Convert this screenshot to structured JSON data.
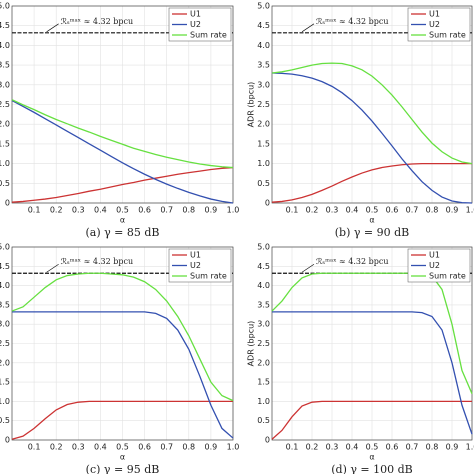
{
  "chart_data": [
    {
      "type": "line",
      "caption": "(a) γ = 85 dB",
      "xlabel": "α",
      "annotation": "ℛₛᵐᵃˣ ≈ 4.32 bpcu",
      "reference_value": 4.32,
      "grid": true,
      "legend": "upper right",
      "xlim": [
        0,
        1
      ],
      "xticks": [
        0.1,
        0.2,
        0.3,
        0.4,
        0.5,
        0.6,
        0.7,
        0.8,
        0.9,
        {
          "value": 1,
          "label": "1.0"
        }
      ],
      "ylim": [
        0,
        5
      ],
      "yticks": [
        0,
        0.5,
        {
          "value": 1,
          "label": "1.0"
        },
        1.5,
        {
          "value": 2,
          "label": "2.0"
        },
        2.5,
        {
          "value": 3,
          "label": "3.0"
        },
        3.5,
        {
          "value": 4,
          "label": "4.0"
        },
        4.5,
        {
          "value": 5,
          "label": "5.0"
        }
      ],
      "x": [
        0,
        0.05,
        0.1,
        0.15,
        0.2,
        0.25,
        0.3,
        0.35,
        0.4,
        0.45,
        0.5,
        0.55,
        0.6,
        0.65,
        0.7,
        0.75,
        0.8,
        0.85,
        0.9,
        0.95,
        1
      ],
      "series": [
        {
          "name": "U1",
          "color": "#cc3333",
          "values": [
            0.02,
            0.04,
            0.07,
            0.1,
            0.14,
            0.19,
            0.24,
            0.3,
            0.35,
            0.41,
            0.47,
            0.52,
            0.58,
            0.63,
            0.68,
            0.73,
            0.77,
            0.81,
            0.85,
            0.88,
            0.9
          ]
        },
        {
          "name": "U2",
          "color": "#3350b0",
          "values": [
            2.6,
            2.45,
            2.3,
            2.14,
            1.98,
            1.82,
            1.66,
            1.5,
            1.34,
            1.18,
            1.02,
            0.87,
            0.73,
            0.6,
            0.48,
            0.37,
            0.27,
            0.18,
            0.1,
            0.04,
            0
          ]
        },
        {
          "name": "Sum rate",
          "color": "#66e040",
          "values": [
            2.62,
            2.49,
            2.37,
            2.24,
            2.12,
            2.01,
            1.9,
            1.8,
            1.69,
            1.59,
            1.49,
            1.39,
            1.31,
            1.23,
            1.16,
            1.1,
            1.04,
            0.99,
            0.95,
            0.92,
            0.9
          ]
        }
      ]
    },
    {
      "type": "line",
      "caption": "(b) γ = 90 dB",
      "xlabel": "α",
      "ylabel": "ADR (bpcu)",
      "annotation": "ℛₛᵐᵃˣ ≈ 4.32 bpcu",
      "reference_value": 4.32,
      "grid": true,
      "legend": "upper right",
      "xlim": [
        0,
        1
      ],
      "xticks": [
        0.1,
        0.2,
        0.3,
        0.4,
        0.5,
        0.6,
        0.7,
        0.8,
        0.9,
        {
          "value": 1,
          "label": "1.0"
        }
      ],
      "ylim": [
        0,
        5
      ],
      "yticks": [
        0,
        0.5,
        {
          "value": 1,
          "label": "1.0"
        },
        1.5,
        {
          "value": 2,
          "label": "2.0"
        },
        2.5,
        {
          "value": 3,
          "label": "3.0"
        },
        3.5,
        {
          "value": 4,
          "label": "4.0"
        },
        4.5,
        {
          "value": 5,
          "label": "5.0"
        }
      ],
      "x": [
        0,
        0.05,
        0.1,
        0.15,
        0.2,
        0.25,
        0.3,
        0.35,
        0.4,
        0.45,
        0.5,
        0.55,
        0.6,
        0.65,
        0.7,
        0.75,
        0.8,
        0.85,
        0.9,
        0.95,
        1
      ],
      "series": [
        {
          "name": "U1",
          "color": "#cc3333",
          "values": [
            0.02,
            0.04,
            0.08,
            0.14,
            0.22,
            0.32,
            0.43,
            0.55,
            0.66,
            0.76,
            0.84,
            0.9,
            0.94,
            0.97,
            0.99,
            1,
            1,
            1,
            1,
            1,
            1
          ]
        },
        {
          "name": "U2",
          "color": "#3350b0",
          "values": [
            3.3,
            3.29,
            3.27,
            3.23,
            3.17,
            3.08,
            2.96,
            2.8,
            2.6,
            2.36,
            2.08,
            1.77,
            1.45,
            1.12,
            0.82,
            0.54,
            0.32,
            0.15,
            0.05,
            0.01,
            0
          ]
        },
        {
          "name": "Sum rate",
          "color": "#66e040",
          "values": [
            3.3,
            3.33,
            3.38,
            3.44,
            3.5,
            3.54,
            3.55,
            3.54,
            3.48,
            3.38,
            3.22,
            3,
            2.74,
            2.44,
            2.12,
            1.8,
            1.52,
            1.3,
            1.14,
            1.04,
            1
          ]
        }
      ]
    },
    {
      "type": "line",
      "caption": "(c) γ = 95 dB",
      "xlabel": "α",
      "annotation": "ℛₛᵐᵃˣ ≈ 4.32 bpcu",
      "reference_value": 4.32,
      "grid": true,
      "legend": "upper right",
      "xlim": [
        0,
        1
      ],
      "xticks": [
        0.1,
        0.2,
        0.3,
        0.4,
        0.5,
        0.6,
        0.7,
        0.8,
        0.9,
        {
          "value": 1,
          "label": "1.0"
        }
      ],
      "ylim": [
        0,
        5
      ],
      "yticks": [
        0,
        0.5,
        {
          "value": 1,
          "label": "1.0"
        },
        1.5,
        {
          "value": 2,
          "label": "2.0"
        },
        2.5,
        {
          "value": 3,
          "label": "3.0"
        },
        3.5,
        {
          "value": 4,
          "label": "4.0"
        },
        4.5,
        {
          "value": 5,
          "label": "5.0"
        }
      ],
      "x": [
        0,
        0.05,
        0.1,
        0.15,
        0.2,
        0.25,
        0.3,
        0.35,
        0.4,
        0.45,
        0.5,
        0.55,
        0.6,
        0.65,
        0.7,
        0.75,
        0.8,
        0.85,
        0.9,
        0.95,
        1
      ],
      "series": [
        {
          "name": "U1",
          "color": "#cc3333",
          "values": [
            0.02,
            0.1,
            0.3,
            0.55,
            0.78,
            0.92,
            0.98,
            1,
            1,
            1,
            1,
            1,
            1,
            1,
            1,
            1,
            1,
            1,
            1,
            1,
            1
          ]
        },
        {
          "name": "U2",
          "color": "#3350b0",
          "values": [
            3.32,
            3.32,
            3.32,
            3.32,
            3.32,
            3.32,
            3.32,
            3.32,
            3.32,
            3.32,
            3.32,
            3.32,
            3.32,
            3.28,
            3.15,
            2.85,
            2.35,
            1.65,
            0.9,
            0.3,
            0.05
          ]
        },
        {
          "name": "Sum rate",
          "color": "#66e040",
          "values": [
            3.34,
            3.45,
            3.7,
            3.95,
            4.15,
            4.26,
            4.3,
            4.32,
            4.32,
            4.3,
            4.28,
            4.22,
            4.1,
            3.9,
            3.6,
            3.2,
            2.7,
            2.1,
            1.5,
            1.15,
            1.02
          ]
        }
      ]
    },
    {
      "type": "line",
      "caption": "(d) γ = 100 dB",
      "xlabel": "α",
      "ylabel": "ADR (bpcu)",
      "annotation": "ℛₛᵐᵃˣ ≈ 4.32 bpcu",
      "reference_value": 4.32,
      "grid": true,
      "legend": "upper right",
      "xlim": [
        0,
        1
      ],
      "xticks": [
        0.1,
        0.2,
        0.3,
        0.4,
        0.5,
        0.6,
        0.7,
        0.8,
        0.9,
        {
          "value": 1,
          "label": "1.0"
        }
      ],
      "ylim": [
        0,
        5
      ],
      "yticks": [
        0,
        0.5,
        {
          "value": 1,
          "label": "1.0"
        },
        1.5,
        {
          "value": 2,
          "label": "2.0"
        },
        2.5,
        {
          "value": 3,
          "label": "3.0"
        },
        3.5,
        {
          "value": 4,
          "label": "4.0"
        },
        4.5,
        {
          "value": 5,
          "label": "5.0"
        }
      ],
      "x": [
        0,
        0.05,
        0.1,
        0.15,
        0.2,
        0.25,
        0.3,
        0.35,
        0.4,
        0.45,
        0.5,
        0.55,
        0.6,
        0.65,
        0.7,
        0.75,
        0.8,
        0.85,
        0.9,
        0.95,
        1
      ],
      "series": [
        {
          "name": "U1",
          "color": "#cc3333",
          "values": [
            0.02,
            0.25,
            0.6,
            0.88,
            0.98,
            1,
            1,
            1,
            1,
            1,
            1,
            1,
            1,
            1,
            1,
            1,
            1,
            1,
            1,
            1,
            1
          ]
        },
        {
          "name": "U2",
          "color": "#3350b0",
          "values": [
            3.32,
            3.32,
            3.32,
            3.32,
            3.32,
            3.32,
            3.32,
            3.32,
            3.32,
            3.32,
            3.32,
            3.32,
            3.32,
            3.32,
            3.32,
            3.3,
            3.2,
            2.85,
            2,
            0.9,
            0.15
          ]
        },
        {
          "name": "Sum rate",
          "color": "#66e040",
          "values": [
            3.34,
            3.6,
            3.95,
            4.2,
            4.3,
            4.32,
            4.32,
            4.32,
            4.32,
            4.32,
            4.32,
            4.32,
            4.32,
            4.32,
            4.32,
            4.32,
            4.25,
            3.9,
            3,
            1.8,
            1.2
          ]
        }
      ]
    }
  ]
}
